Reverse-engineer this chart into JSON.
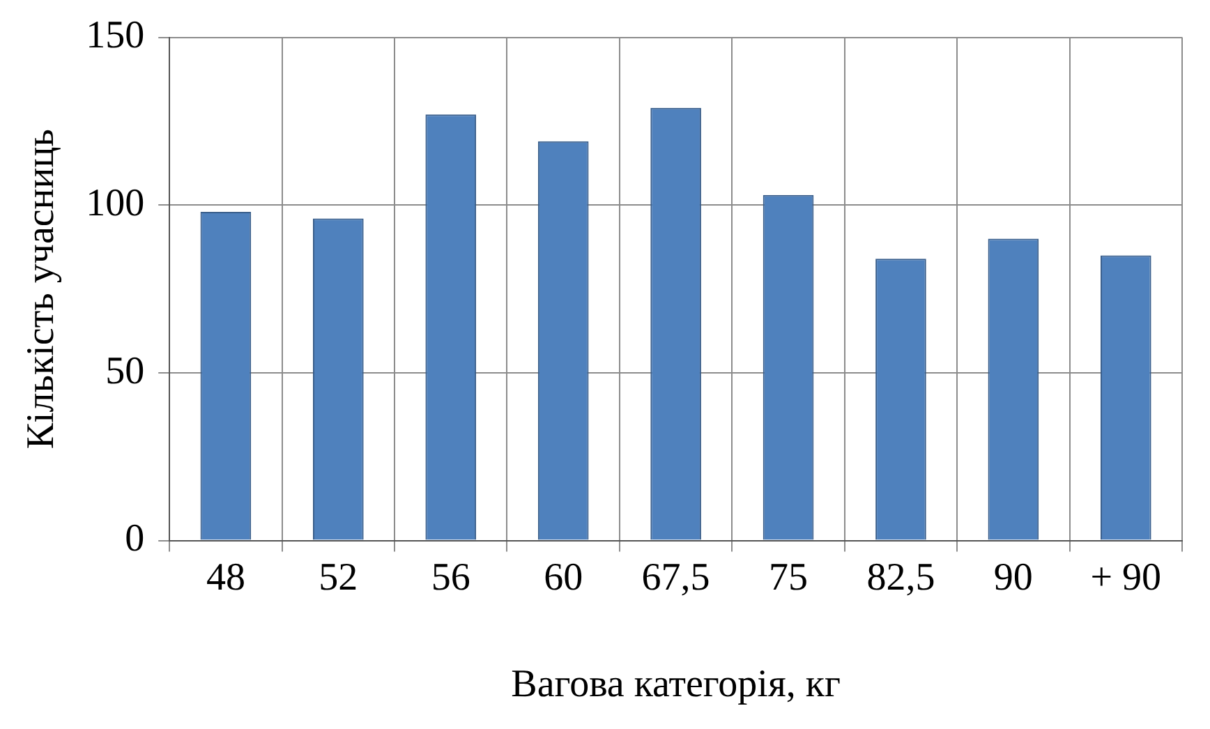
{
  "chart_data": {
    "type": "bar",
    "xlabel": "Вагова категорія, кг",
    "ylabel": "Кількість учасниць",
    "categories": [
      "48",
      "52",
      "56",
      "60",
      "67,5",
      "75",
      "82,5",
      "90",
      "+ 90"
    ],
    "values": [
      98,
      96,
      127,
      119,
      129,
      103,
      84,
      90,
      85
    ],
    "color": "#4f81bd",
    "ylim": [
      0,
      150
    ],
    "yticks": [
      0,
      50,
      100,
      150
    ],
    "grid": true,
    "legend": false
  }
}
